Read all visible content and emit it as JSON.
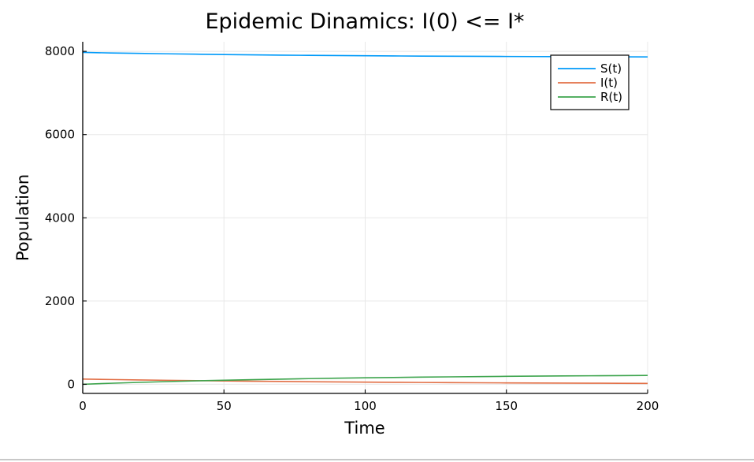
{
  "chart_data": {
    "type": "line",
    "title": "Epidemic Dinamics: I(0) <= I*",
    "xlabel": "Time",
    "ylabel": "Population",
    "xlim": [
      0,
      200
    ],
    "ylim": [
      -220,
      8230
    ],
    "grid": true,
    "legend_position": "top-right",
    "x_ticks": [
      "0",
      "50",
      "100",
      "150",
      "200"
    ],
    "y_ticks": [
      "0",
      "2000",
      "4000",
      "6000",
      "8000"
    ],
    "x_tick_values": [
      0,
      50,
      100,
      150,
      200
    ],
    "y_tick_values": [
      0,
      2000,
      4000,
      6000,
      8000
    ],
    "x": [
      0,
      10,
      20,
      30,
      40,
      50,
      60,
      70,
      80,
      90,
      100,
      110,
      120,
      130,
      140,
      150,
      160,
      170,
      180,
      190,
      200
    ],
    "series": [
      {
        "name": "S(t)",
        "color": "#009af9",
        "values": [
          7975,
          7962,
          7951,
          7941,
          7932,
          7924,
          7917,
          7910,
          7904,
          7899,
          7894,
          7890,
          7886,
          7883,
          7880,
          7877,
          7875,
          7873,
          7871,
          7869,
          7867
        ]
      },
      {
        "name": "I(t)",
        "color": "#e26f46",
        "values": [
          125,
          114,
          104,
          95,
          87,
          80,
          73,
          67,
          61,
          56,
          51,
          47,
          43,
          39,
          36,
          33,
          30,
          27,
          25,
          23,
          21
        ]
      },
      {
        "name": "R(t)",
        "color": "#3da44d",
        "values": [
          0,
          24,
          45,
          64,
          81,
          96,
          110,
          123,
          135,
          145,
          155,
          163,
          171,
          178,
          184,
          190,
          195,
          200,
          204,
          208,
          212
        ]
      }
    ]
  }
}
